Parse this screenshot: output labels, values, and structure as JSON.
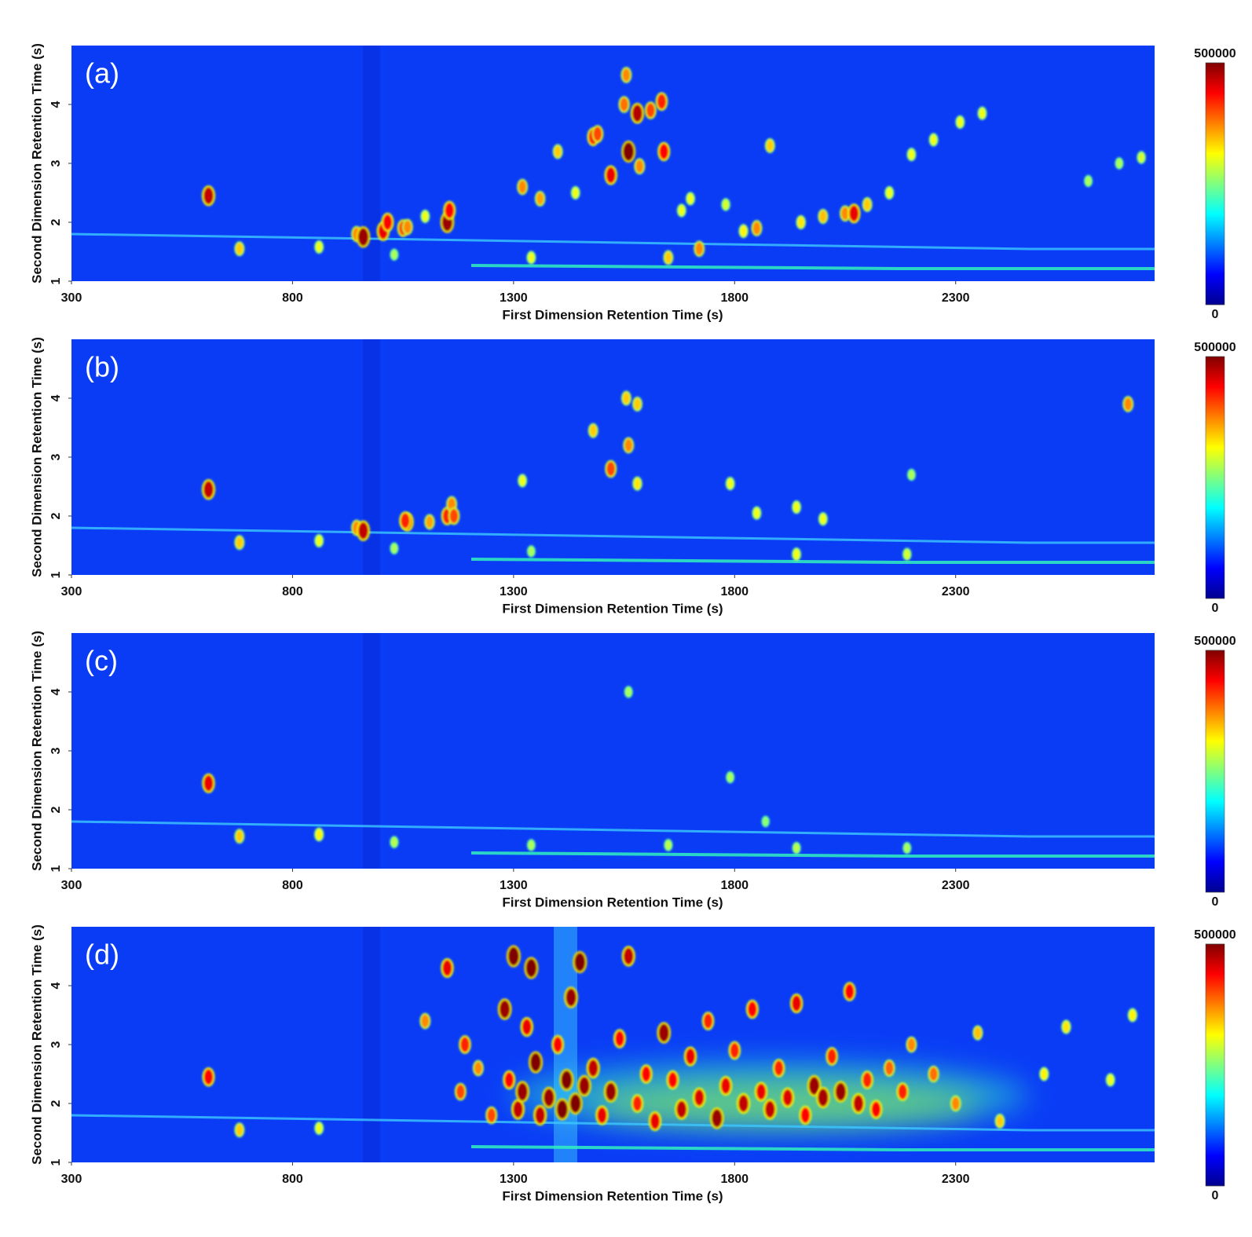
{
  "chart_data": [
    {
      "type": "contour",
      "panel_label": "(a)",
      "x_label": "First Dimension Retention Time (s)",
      "y_label": "Second Dimension Retention Time (s)",
      "xlim": [
        300,
        2750
      ],
      "xticks": [
        300,
        800,
        1300,
        1800,
        2300
      ],
      "ylim": [
        1,
        5
      ],
      "yticks": [
        1,
        2,
        3,
        4
      ],
      "clim": [
        0,
        500000
      ],
      "cticks": [
        0,
        500000
      ],
      "x": [
        610,
        680,
        860,
        945,
        960,
        1005,
        1015,
        1050,
        1060,
        1100,
        1150,
        1155,
        1030,
        1320,
        1340,
        1360,
        1400,
        1440,
        1480,
        1490,
        1520,
        1560,
        1555,
        1550,
        1580,
        1610,
        1635,
        1585,
        1640,
        1650,
        1680,
        1700,
        1720,
        1780,
        1820,
        1850,
        1880,
        1950,
        2000,
        2050,
        2070,
        2100,
        2150,
        2200,
        2250,
        2310,
        2360,
        2600,
        2670,
        2720
      ],
      "y": [
        2.45,
        1.55,
        1.58,
        1.8,
        1.75,
        1.85,
        2.0,
        1.9,
        1.92,
        2.1,
        2.0,
        2.2,
        1.45,
        2.6,
        1.4,
        2.4,
        3.2,
        2.5,
        3.45,
        3.5,
        2.8,
        3.2,
        4.5,
        4.0,
        3.85,
        3.9,
        4.05,
        2.95,
        3.2,
        1.4,
        2.2,
        2.4,
        1.55,
        2.3,
        1.85,
        1.9,
        3.3,
        2.0,
        2.1,
        2.15,
        2.15,
        2.3,
        2.5,
        3.15,
        3.4,
        3.7,
        3.85,
        2.7,
        3.0,
        3.1
      ],
      "values": [
        450000,
        250000,
        200000,
        300000,
        480000,
        420000,
        400000,
        350000,
        300000,
        200000,
        480000,
        400000,
        150000,
        300000,
        200000,
        280000,
        250000,
        200000,
        380000,
        350000,
        420000,
        500000,
        300000,
        320000,
        460000,
        350000,
        380000,
        300000,
        400000,
        250000,
        200000,
        200000,
        300000,
        180000,
        220000,
        300000,
        250000,
        230000,
        260000,
        300000,
        420000,
        250000,
        200000,
        200000,
        200000,
        200000,
        200000,
        150000,
        150000,
        180000
      ]
    },
    {
      "type": "contour",
      "panel_label": "(b)",
      "x_label": "First Dimension Retention Time (s)",
      "y_label": "Second Dimension Retention Time (s)",
      "xlim": [
        300,
        2750
      ],
      "xticks": [
        300,
        800,
        1300,
        1800,
        2300
      ],
      "ylim": [
        1,
        5
      ],
      "yticks": [
        1,
        2,
        3,
        4
      ],
      "clim": [
        0,
        500000
      ],
      "cticks": [
        0,
        500000
      ],
      "x": [
        610,
        680,
        860,
        945,
        960,
        1030,
        1060,
        1055,
        1110,
        1150,
        1160,
        1165,
        1320,
        1340,
        1480,
        1520,
        1560,
        1555,
        1580,
        1580,
        1790,
        1850,
        1940,
        2000,
        2200,
        2690,
        1940,
        2190
      ],
      "y": [
        2.45,
        1.55,
        1.58,
        1.8,
        1.75,
        1.45,
        1.9,
        1.92,
        1.9,
        2.0,
        2.2,
        2.0,
        2.6,
        1.4,
        3.45,
        2.8,
        3.2,
        4.0,
        3.9,
        2.55,
        2.55,
        2.05,
        2.15,
        1.95,
        2.7,
        3.9,
        1.35,
        1.35
      ],
      "values": [
        450000,
        250000,
        200000,
        300000,
        450000,
        150000,
        400000,
        380000,
        280000,
        380000,
        300000,
        350000,
        200000,
        150000,
        250000,
        350000,
        300000,
        250000,
        250000,
        230000,
        200000,
        200000,
        200000,
        200000,
        150000,
        300000,
        200000,
        180000
      ]
    },
    {
      "type": "contour",
      "panel_label": "(c)",
      "x_label": "First Dimension Retention Time (s)",
      "y_label": "Second Dimension Retention Time (s)",
      "xlim": [
        300,
        2750
      ],
      "xticks": [
        300,
        800,
        1300,
        1800,
        2300
      ],
      "ylim": [
        1,
        5
      ],
      "yticks": [
        1,
        2,
        3,
        4
      ],
      "clim": [
        0,
        500000
      ],
      "cticks": [
        0,
        500000
      ],
      "x": [
        610,
        680,
        860,
        1030,
        1340,
        1560,
        1650,
        1940,
        1790,
        2190,
        1870
      ],
      "y": [
        2.45,
        1.55,
        1.58,
        1.45,
        1.4,
        4.0,
        1.4,
        1.35,
        2.55,
        1.35,
        1.8
      ],
      "values": [
        420000,
        250000,
        220000,
        160000,
        150000,
        150000,
        160000,
        160000,
        150000,
        150000,
        130000
      ]
    },
    {
      "type": "contour",
      "panel_label": "(d)",
      "x_label": "First Dimension Retention Time (s)",
      "y_label": "Second Dimension Retention Time (s)",
      "xlim": [
        300,
        2750
      ],
      "xticks": [
        300,
        800,
        1300,
        1800,
        2300
      ],
      "ylim": [
        1,
        5
      ],
      "yticks": [
        1,
        2,
        3,
        4
      ],
      "clim": [
        0,
        500000
      ],
      "cticks": [
        0,
        500000
      ],
      "x": [
        610,
        680,
        860,
        1100,
        1150,
        1180,
        1190,
        1220,
        1250,
        1280,
        1290,
        1300,
        1310,
        1320,
        1330,
        1340,
        1350,
        1360,
        1380,
        1400,
        1410,
        1420,
        1430,
        1440,
        1450,
        1460,
        1480,
        1500,
        1520,
        1540,
        1560,
        1580,
        1600,
        1620,
        1640,
        1660,
        1680,
        1700,
        1720,
        1740,
        1760,
        1780,
        1800,
        1820,
        1840,
        1860,
        1880,
        1900,
        1920,
        1940,
        1960,
        1980,
        2000,
        2020,
        2040,
        2060,
        2080,
        2100,
        2120,
        2150,
        2180,
        2200,
        2250,
        2300,
        2350,
        2400,
        2500,
        2550,
        2650,
        2700
      ],
      "y": [
        2.45,
        1.55,
        1.58,
        3.4,
        4.3,
        2.2,
        3.0,
        2.6,
        1.8,
        3.6,
        2.4,
        4.5,
        1.9,
        2.2,
        3.3,
        4.3,
        2.7,
        1.8,
        2.1,
        3.0,
        1.9,
        2.4,
        3.8,
        2.0,
        4.4,
        2.3,
        2.6,
        1.8,
        2.2,
        3.1,
        4.5,
        2.0,
        2.5,
        1.7,
        3.2,
        2.4,
        1.9,
        2.8,
        2.1,
        3.4,
        1.75,
        2.3,
        2.9,
        2.0,
        3.6,
        2.2,
        1.9,
        2.6,
        2.1,
        3.7,
        1.8,
        2.3,
        2.1,
        2.8,
        2.2,
        3.9,
        2.0,
        2.4,
        1.9,
        2.6,
        2.2,
        3.0,
        2.5,
        2.0,
        3.2,
        1.7,
        2.5,
        3.3,
        2.4,
        3.5
      ],
      "values": [
        400000,
        250000,
        200000,
        300000,
        420000,
        350000,
        380000,
        300000,
        350000,
        480000,
        400000,
        500000,
        450000,
        480000,
        420000,
        500000,
        500000,
        450000,
        480000,
        400000,
        500000,
        500000,
        480000,
        500000,
        500000,
        480000,
        450000,
        420000,
        480000,
        400000,
        450000,
        380000,
        400000,
        420000,
        480000,
        400000,
        450000,
        420000,
        430000,
        380000,
        480000,
        420000,
        380000,
        450000,
        400000,
        420000,
        450000,
        380000,
        430000,
        420000,
        400000,
        480000,
        470000,
        380000,
        480000,
        400000,
        450000,
        380000,
        400000,
        330000,
        380000,
        300000,
        320000,
        300000,
        260000,
        250000,
        220000,
        230000,
        200000,
        220000
      ]
    }
  ]
}
